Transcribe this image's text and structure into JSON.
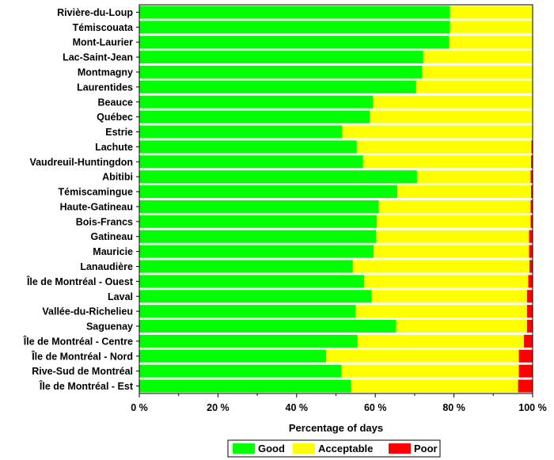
{
  "chart_data": {
    "type": "bar",
    "orientation": "horizontal",
    "stacked": true,
    "categories": [
      "Rivière-du-Loup",
      "Témiscouata",
      "Mont-Laurier",
      "Lac-Saint-Jean",
      "Montmagny",
      "Laurentides",
      "Beauce",
      "Québec",
      "Estrie",
      "Lachute",
      "Vaudreuil-Huntingdon",
      "Abitibi",
      "Témiscamingue",
      "Haute-Gatineau",
      "Bois-Francs",
      "Gatineau",
      "Mauricie",
      "Lanaudière",
      "Île de Montréal - Ouest",
      "Laval",
      "Vallée-du-Richelieu",
      "Saguenay",
      "Île de Montréal - Centre",
      "Île de Montréal - Nord",
      "Rive-Sud de Montréal",
      "Île de Montréal - Est"
    ],
    "series": [
      {
        "name": "Good",
        "color": "#00ff00",
        "values": [
          79,
          79,
          78.8,
          72.2,
          71.9,
          70.4,
          59.4,
          58.6,
          51.6,
          55.3,
          56.9,
          70.6,
          65.6,
          60.9,
          60.4,
          60.2,
          59.6,
          54.3,
          57.2,
          59.1,
          55,
          65.3,
          55.5,
          47.5,
          51.4,
          53.8
        ]
      },
      {
        "name": "Acceptable",
        "color": "#ffff00",
        "values": [
          21,
          21,
          21.2,
          27.8,
          28.1,
          29.6,
          40.6,
          41.4,
          48.4,
          44.4,
          42.7,
          28.9,
          34,
          38.6,
          39.1,
          38.9,
          39.5,
          44.9,
          41.7,
          39.5,
          43.6,
          33.3,
          42.3,
          49,
          45.1,
          42.5
        ]
      },
      {
        "name": "Poor",
        "color": "#ff0000",
        "values": [
          0,
          0,
          0,
          0,
          0,
          0,
          0,
          0,
          0,
          0.3,
          0.4,
          0.5,
          0.4,
          0.5,
          0.5,
          0.9,
          0.9,
          0.8,
          1.1,
          1.4,
          1.4,
          1.4,
          2.2,
          3.5,
          3.5,
          3.7
        ]
      }
    ],
    "x_ticks": [
      "0 %",
      "20 %",
      "40 %",
      "60 %",
      "80 %",
      "100 %"
    ],
    "xlim": [
      0,
      100
    ],
    "xlabel": "Percentage of days",
    "ylabel": "",
    "title": "",
    "legend_position": "bottom",
    "grid": false
  }
}
